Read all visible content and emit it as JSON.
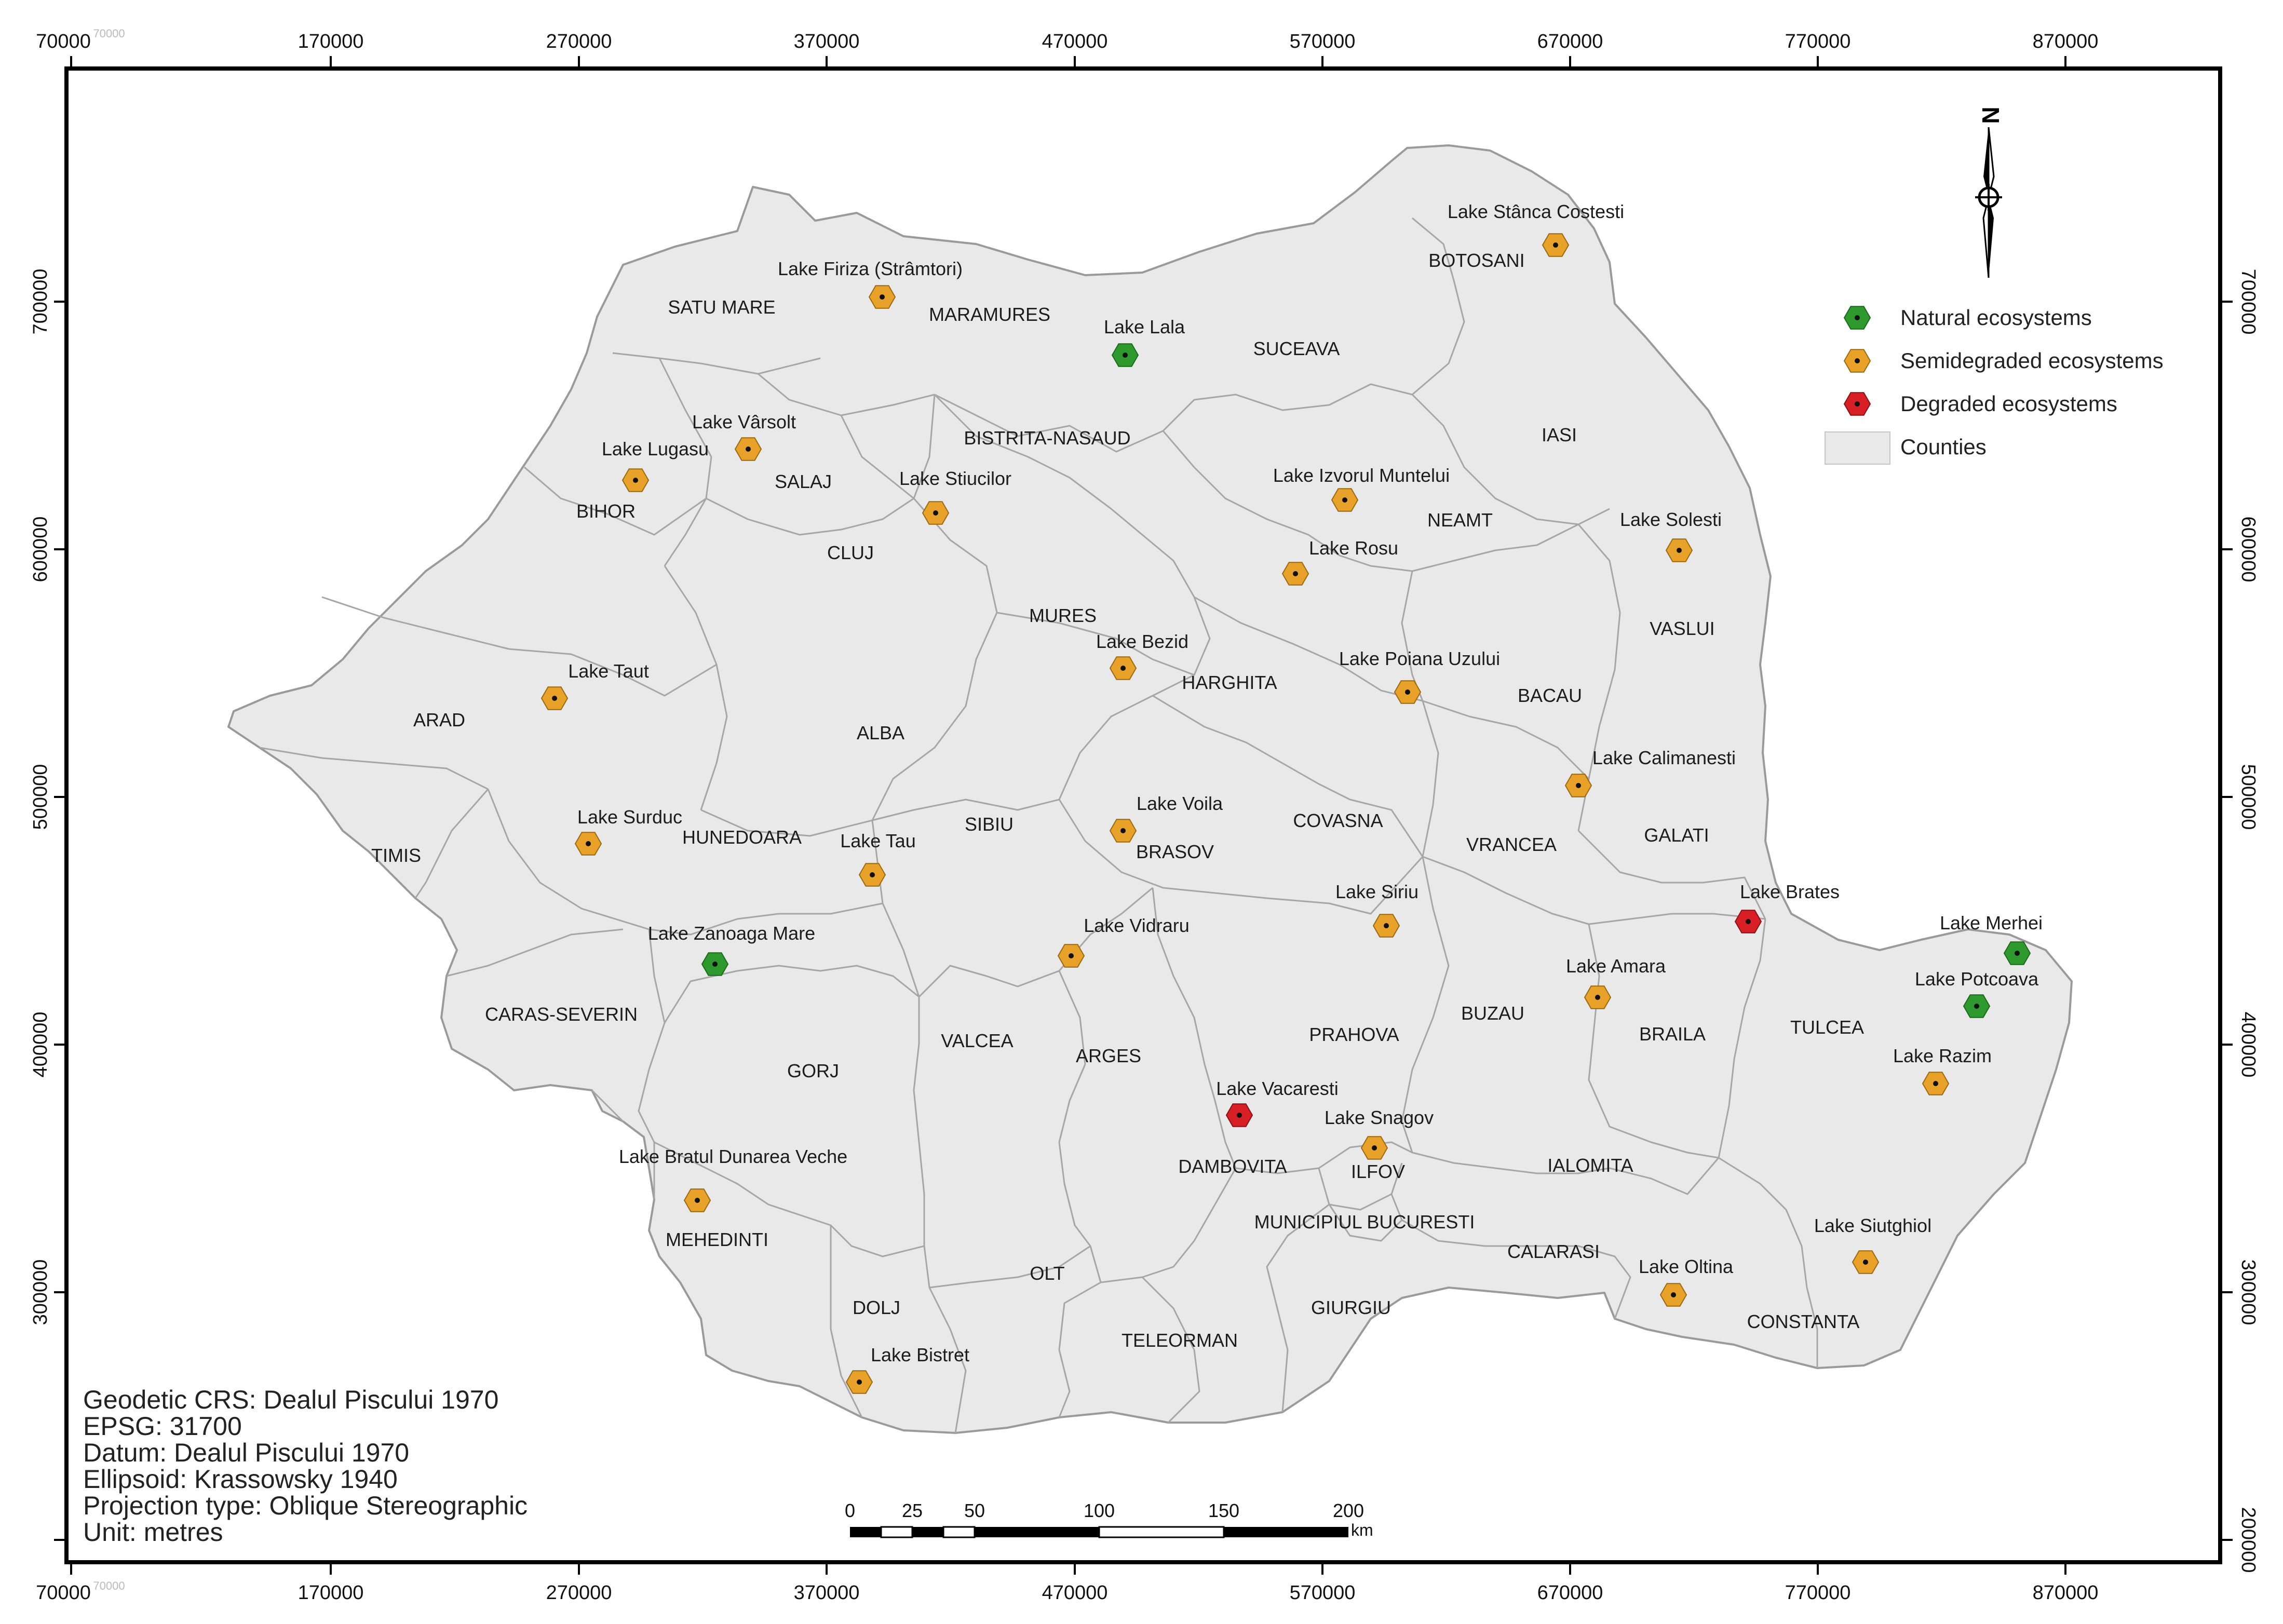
{
  "map": {
    "x_ticks": [
      "70000",
      "170000",
      "270000",
      "370000",
      "470000",
      "570000",
      "670000",
      "770000",
      "870000"
    ],
    "y_ticks": [
      "700000",
      "600000",
      "500000",
      "400000",
      "300000",
      "200000"
    ],
    "faint_label": "70000"
  },
  "legend": {
    "items": [
      {
        "label": "Natural ecosystems",
        "color": "#2e9a2e",
        "symbol": "hexagon"
      },
      {
        "label": "Semidegraded ecosystems",
        "color": "#e8a22a",
        "symbol": "hexagon"
      },
      {
        "label": "Degraded ecosystems",
        "color": "#d81f26",
        "symbol": "hexagon"
      },
      {
        "label": "Counties",
        "color": "#e9e9e9",
        "symbol": "rectangle"
      }
    ]
  },
  "info": {
    "lines": [
      "Geodetic CRS: Dealul Piscului 1970",
      "EPSG: 31700",
      "Datum: Dealul Piscului 1970",
      "Ellipsoid: Krassowsky 1940",
      "Projection type: Oblique Stereographic",
      "Unit: metres"
    ]
  },
  "scalebar": {
    "labels": [
      "0",
      "25",
      "50",
      "100",
      "150",
      "200"
    ],
    "unit": "km"
  },
  "north_arrow": {
    "letter": "N"
  },
  "counties": [
    "SATU MARE",
    "MARAMURES",
    "SUCEAVA",
    "BOTOSANI",
    "BIHOR",
    "SALAJ",
    "BISTRITA-NASAUD",
    "IASI",
    "CLUJ",
    "NEAMT",
    "MURES",
    "VASLUI",
    "ARAD",
    "HARGHITA",
    "BACAU",
    "ALBA",
    "TIMIS",
    "HUNEDOARA",
    "SIBIU",
    "BRASOV",
    "COVASNA",
    "VRANCEA",
    "GALATI",
    "CARAS-SEVERIN",
    "GORJ",
    "VALCEA",
    "ARGES",
    "PRAHOVA",
    "BUZAU",
    "BRAILA",
    "TULCEA",
    "DAMBOVITA",
    "ILFOV",
    "IALOMITA",
    "MEHEDINTI",
    "MUNICIPIUL BUCURESTI",
    "CALARASI",
    "DOLJ",
    "OLT",
    "GIURGIU",
    "CONSTANTA",
    "TELEORMAN"
  ],
  "lakes": [
    {
      "name": "Lake Stânca Costesti",
      "status": "semidegraded"
    },
    {
      "name": "Lake Firiza (Strâmtori)",
      "status": "semidegraded"
    },
    {
      "name": "Lake Lala",
      "status": "natural"
    },
    {
      "name": "Lake Vârsolt",
      "status": "semidegraded"
    },
    {
      "name": "Lake Lugasu",
      "status": "semidegraded"
    },
    {
      "name": "Lake Stiucilor",
      "status": "semidegraded"
    },
    {
      "name": "Lake Izvorul Muntelui",
      "status": "semidegraded"
    },
    {
      "name": "Lake Solesti",
      "status": "semidegraded"
    },
    {
      "name": "Lake Rosu",
      "status": "semidegraded"
    },
    {
      "name": "Lake Bezid",
      "status": "semidegraded"
    },
    {
      "name": "Lake Poiana Uzului",
      "status": "semidegraded"
    },
    {
      "name": "Lake Taut",
      "status": "semidegraded"
    },
    {
      "name": "Lake Calimanesti",
      "status": "semidegraded"
    },
    {
      "name": "Lake Voila",
      "status": "semidegraded"
    },
    {
      "name": "Lake Surduc",
      "status": "semidegraded"
    },
    {
      "name": "Lake Tau",
      "status": "semidegraded"
    },
    {
      "name": "Lake Brates",
      "status": "degraded"
    },
    {
      "name": "Lake Siriu",
      "status": "semidegraded"
    },
    {
      "name": "Lake Merhei",
      "status": "natural"
    },
    {
      "name": "Lake Zanoaga Mare",
      "status": "natural"
    },
    {
      "name": "Lake Vidraru",
      "status": "semidegraded"
    },
    {
      "name": "Lake Amara",
      "status": "semidegraded"
    },
    {
      "name": "Lake Potcoava",
      "status": "natural"
    },
    {
      "name": "Lake Razim",
      "status": "semidegraded"
    },
    {
      "name": "Lake Vacaresti",
      "status": "degraded"
    },
    {
      "name": "Lake Snagov",
      "status": "semidegraded"
    },
    {
      "name": "Lake Bratul Dunarea Veche",
      "status": "semidegraded"
    },
    {
      "name": "Lake Siutghiol",
      "status": "semidegraded"
    },
    {
      "name": "Lake Oltina",
      "status": "semidegraded"
    },
    {
      "name": "Lake Bistret",
      "status": "semidegraded"
    }
  ],
  "colors": {
    "natural": "#2e9a2e",
    "semidegraded": "#e8a22a",
    "degraded": "#d81f26",
    "land": "#e9e9e9",
    "county_border": "#9a9a9a"
  }
}
